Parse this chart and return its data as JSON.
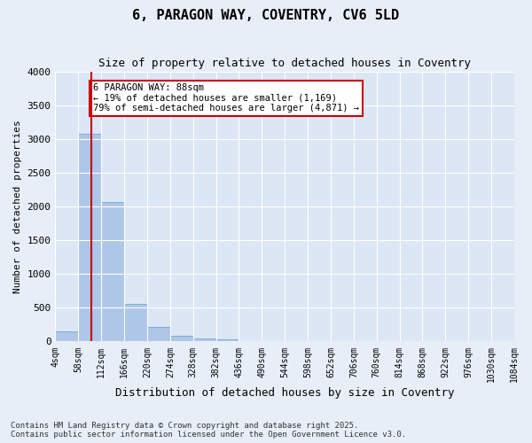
{
  "title": "6, PARAGON WAY, COVENTRY, CV6 5LD",
  "subtitle": "Size of property relative to detached houses in Coventry",
  "xlabel": "Distribution of detached houses by size in Coventry",
  "ylabel": "Number of detached properties",
  "footnote": "Contains HM Land Registry data © Crown copyright and database right 2025.\nContains public sector information licensed under the Open Government Licence v3.0.",
  "bin_labels": [
    "4sqm",
    "58sqm",
    "112sqm",
    "166sqm",
    "220sqm",
    "274sqm",
    "328sqm",
    "382sqm",
    "436sqm",
    "490sqm",
    "544sqm",
    "598sqm",
    "652sqm",
    "706sqm",
    "760sqm",
    "814sqm",
    "868sqm",
    "922sqm",
    "976sqm",
    "1030sqm",
    "1084sqm"
  ],
  "bar_values": [
    150,
    3080,
    2060,
    560,
    210,
    80,
    40,
    30,
    0,
    0,
    0,
    0,
    0,
    0,
    0,
    0,
    0,
    0,
    0,
    0
  ],
  "bar_color": "#aec6e8",
  "bar_edge_color": "#7aafd4",
  "ylim": [
    0,
    4000
  ],
  "yticks": [
    0,
    500,
    1000,
    1500,
    2000,
    2500,
    3000,
    3500,
    4000
  ],
  "property_line_x": 0.55,
  "annotation_text": "6 PARAGON WAY: 88sqm\n← 19% of detached houses are smaller (1,169)\n79% of semi-detached houses are larger (4,871) →",
  "annotation_box_color": "#ffffff",
  "annotation_box_edge": "#cc0000",
  "red_line_color": "#cc0000",
  "bg_color": "#e8eef8",
  "plot_bg_color": "#dce6f5"
}
